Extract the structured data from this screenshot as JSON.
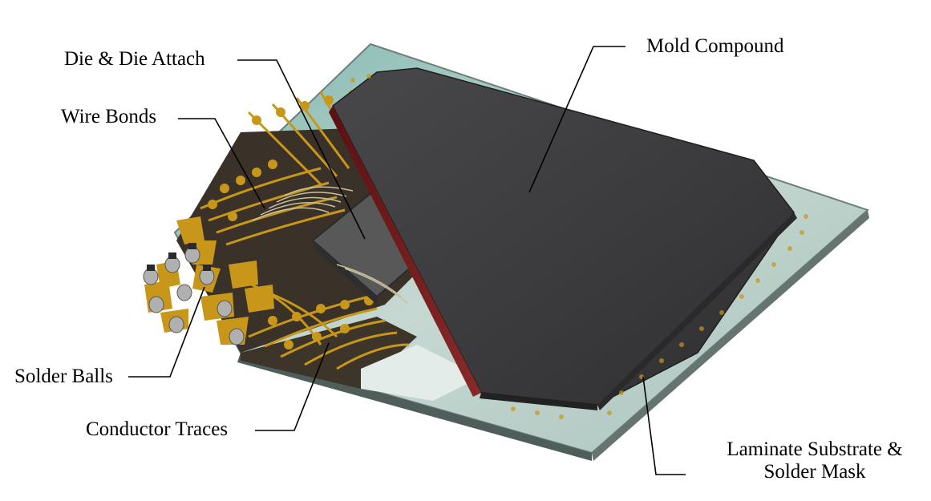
{
  "labels": {
    "mold_compound": "Mold Compound",
    "die_attach": "Die & Die Attach",
    "wire_bonds": "Wire Bonds",
    "solder_balls": "Solder Balls",
    "conductor_traces": "Conductor Traces",
    "laminate_line1": "Laminate Substrate &",
    "laminate_line2": "Solder Mask"
  },
  "colors": {
    "mold": "#3b3b3d",
    "mold_edge": "#6a1414",
    "substrate": "#b9cfc8",
    "substrate_edge": "#6e7f7a",
    "copper": "#c8971a",
    "solder_mask_dark": "#3a3228",
    "die": "#555555",
    "solder_ball": "#b0b0b0"
  }
}
